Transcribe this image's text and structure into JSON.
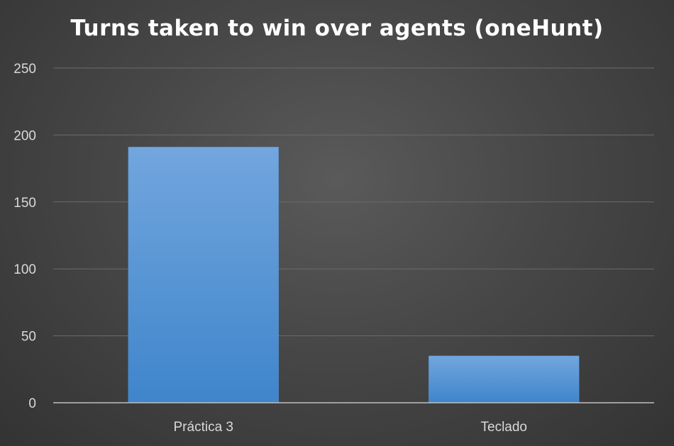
{
  "chart_data": {
    "type": "bar",
    "title": "Turns taken to win over agents (oneHunt)",
    "categories": [
      "Práctica 3",
      "Teclado"
    ],
    "values": [
      191,
      35
    ],
    "xlabel": "",
    "ylabel": "",
    "ylim": [
      0,
      250
    ],
    "yticks": [
      0,
      50,
      100,
      150,
      200,
      250
    ],
    "grid": true,
    "legend": "none",
    "colors": {
      "bar_top": "#72a6de",
      "bar_bottom": "#3f85cb",
      "background": "#474747",
      "text": "#d9d9d9",
      "title": "#ffffff"
    }
  }
}
